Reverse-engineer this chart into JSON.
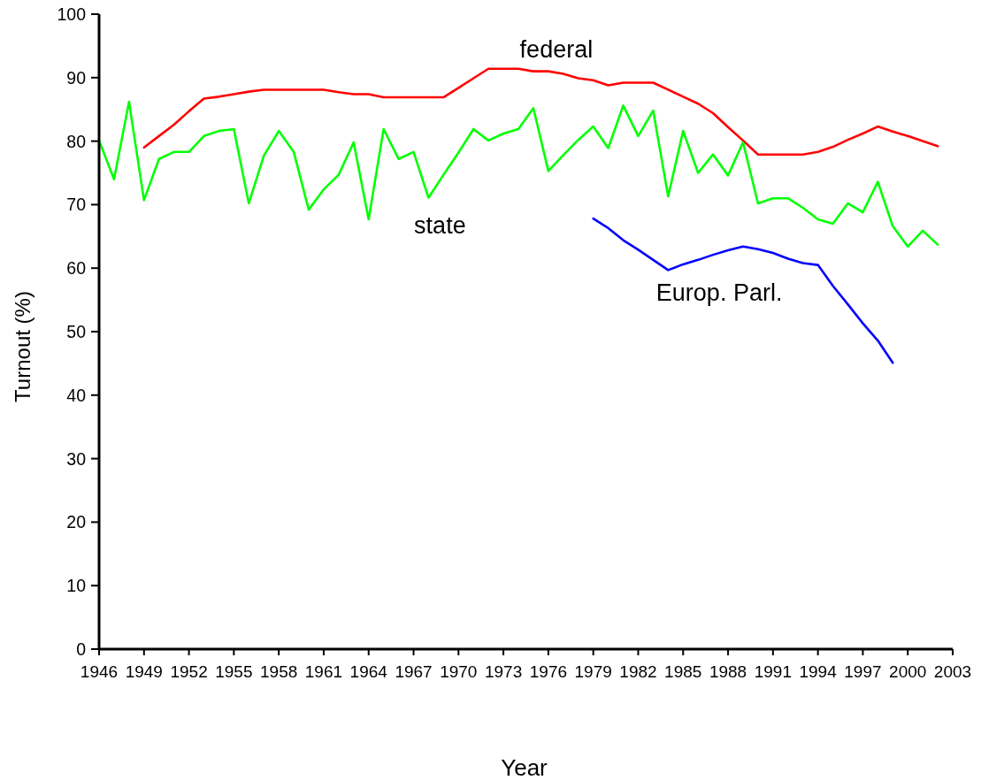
{
  "chart_data": {
    "type": "line",
    "xlabel": "Year",
    "ylabel": "Turnout (%)",
    "xlim": [
      1946,
      2003
    ],
    "xticks": [
      1946,
      1949,
      1952,
      1955,
      1958,
      1961,
      1964,
      1967,
      1970,
      1973,
      1976,
      1979,
      1982,
      1985,
      1988,
      1991,
      1994,
      1997,
      2000,
      2003
    ],
    "ylim": [
      0,
      100
    ],
    "yticks": [
      0,
      10,
      20,
      30,
      40,
      50,
      60,
      70,
      80,
      90,
      100
    ],
    "legend": false,
    "marker": "none",
    "line_style": "solid",
    "series": [
      {
        "name": "federal",
        "color": "#ff0000",
        "x": [
          1949,
          1950,
          1951,
          1952,
          1953,
          1954,
          1955,
          1956,
          1957,
          1958,
          1959,
          1960,
          1961,
          1962,
          1963,
          1964,
          1965,
          1966,
          1967,
          1968,
          1969,
          1970,
          1971,
          1972,
          1973,
          1974,
          1975,
          1976,
          1977,
          1978,
          1979,
          1980,
          1981,
          1982,
          1983,
          1984,
          1985,
          1986,
          1987,
          1988,
          1989,
          1990,
          1991,
          1992,
          1993,
          1994,
          1995,
          1996,
          1997,
          1998,
          1999,
          2000,
          2001,
          2002
        ],
        "values": [
          79.0,
          80.8,
          82.6,
          84.7,
          86.7,
          87.0,
          87.4,
          87.8,
          88.1,
          88.1,
          88.1,
          88.1,
          88.1,
          87.7,
          87.4,
          87.4,
          86.9,
          86.9,
          86.9,
          86.9,
          86.9,
          88.4,
          89.9,
          91.4,
          91.4,
          91.4,
          91.0,
          91.0,
          90.6,
          89.9,
          89.6,
          88.8,
          89.2,
          89.2,
          89.2,
          88.1,
          87.0,
          85.9,
          84.4,
          82.2,
          80.1,
          77.9,
          77.9,
          77.9,
          77.9,
          78.3,
          79.1,
          80.2,
          81.2,
          82.3,
          81.5,
          80.8,
          80.0,
          79.2
        ]
      },
      {
        "name": "state",
        "color": "#00ff00",
        "x": [
          1946,
          1947,
          1948,
          1949,
          1950,
          1951,
          1952,
          1953,
          1954,
          1955,
          1956,
          1957,
          1958,
          1959,
          1960,
          1961,
          1962,
          1963,
          1964,
          1965,
          1966,
          1967,
          1968,
          1969,
          1970,
          1971,
          1972,
          1973,
          1974,
          1975,
          1976,
          1977,
          1978,
          1979,
          1980,
          1981,
          1982,
          1983,
          1984,
          1985,
          1986,
          1987,
          1988,
          1989,
          1990,
          1991,
          1992,
          1993,
          1994,
          1995,
          1996,
          1997,
          1998,
          1999,
          2000,
          2001,
          2002
        ],
        "values": [
          80.1,
          74.0,
          86.2,
          70.7,
          77.2,
          78.3,
          78.3,
          80.8,
          81.6,
          81.9,
          70.2,
          77.7,
          81.6,
          78.3,
          69.2,
          72.4,
          74.7,
          79.8,
          67.7,
          81.9,
          77.2,
          78.3,
          71.1,
          74.7,
          78.2,
          81.9,
          80.1,
          81.2,
          81.9,
          85.2,
          75.3,
          77.8,
          80.2,
          82.3,
          78.9,
          85.6,
          80.8,
          84.8,
          71.3,
          81.6,
          75.0,
          77.9,
          74.6,
          79.8,
          70.2,
          71.0,
          71.0,
          69.5,
          67.7,
          67.0,
          70.2,
          68.8,
          73.6,
          66.6,
          63.4,
          65.9,
          63.7
        ]
      },
      {
        "name": "Europ. Parl.",
        "color": "#0000ff",
        "x": [
          1979,
          1980,
          1981,
          1982,
          1983,
          1984,
          1985,
          1986,
          1987,
          1988,
          1989,
          1990,
          1991,
          1992,
          1993,
          1994,
          1995,
          1996,
          1997,
          1998,
          1999
        ],
        "values": [
          67.8,
          66.3,
          64.4,
          62.9,
          61.3,
          59.7,
          60.6,
          61.3,
          62.1,
          62.8,
          63.4,
          63.0,
          62.4,
          61.5,
          60.8,
          60.5,
          57.2,
          54.3,
          51.3,
          48.6,
          45.1
        ]
      }
    ]
  }
}
